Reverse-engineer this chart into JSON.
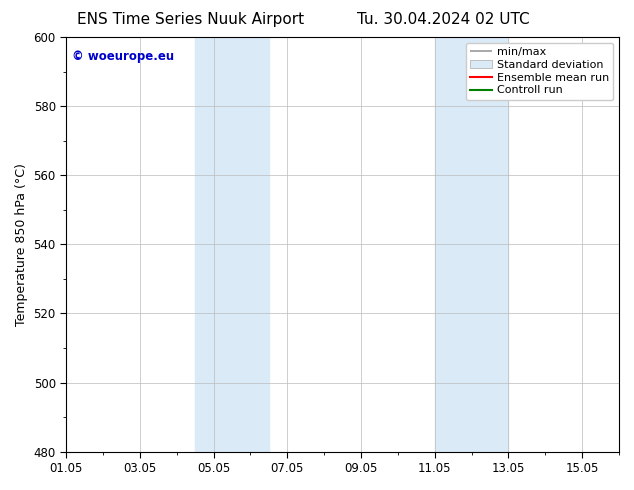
{
  "title_left": "ENS Time Series Nuuk Airport",
  "title_right": "Tu. 30.04.2024 02 UTC",
  "ylabel": "Temperature 850 hPa (°C)",
  "ylim": [
    480,
    600
  ],
  "yticks": [
    480,
    500,
    520,
    540,
    560,
    580,
    600
  ],
  "xtick_labels": [
    "01.05",
    "03.05",
    "05.05",
    "07.05",
    "09.05",
    "11.05",
    "13.05",
    "15.05"
  ],
  "xtick_day_offsets": [
    0,
    2,
    4,
    6,
    8,
    10,
    12,
    14
  ],
  "shaded_bands": [
    {
      "x_start": 3.5,
      "x_end": 5.5,
      "color": "#daeaf7"
    },
    {
      "x_start": 10.0,
      "x_end": 12.0,
      "color": "#daeaf7"
    }
  ],
  "legend_items": [
    {
      "label": "min/max",
      "color": "#aaaaaa",
      "type": "errorbar"
    },
    {
      "label": "Standard deviation",
      "color": "#daeaf7",
      "type": "rect"
    },
    {
      "label": "Ensemble mean run",
      "color": "red",
      "type": "line"
    },
    {
      "label": "Controll run",
      "color": "green",
      "type": "line"
    }
  ],
  "watermark_text": "© woeurope.eu",
  "watermark_color": "#0000cc",
  "background_color": "#ffffff",
  "grid_color": "#bbbbbb",
  "title_fontsize": 11,
  "axis_fontsize": 9,
  "tick_fontsize": 8.5,
  "legend_fontsize": 8
}
